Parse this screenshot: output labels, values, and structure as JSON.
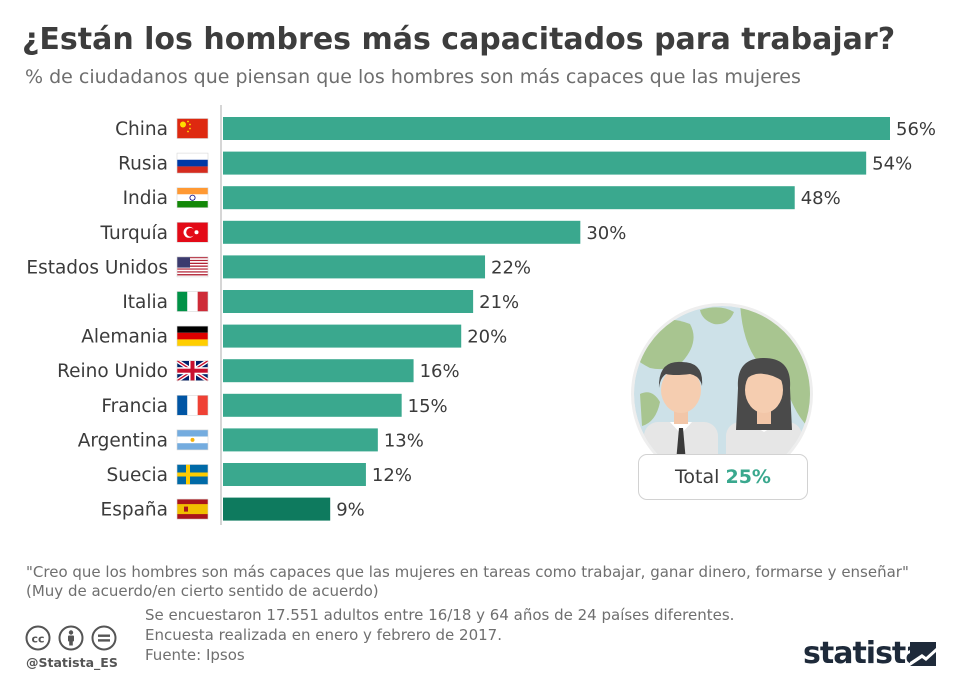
{
  "header": {
    "title": "¿Están los hombres más capacitados para trabajar?",
    "subtitle": "% de ciudadanos que piensan que los hombres son más capaces que las mujeres"
  },
  "colors": {
    "bar": "#3aa88e",
    "bar_highlight": "#0e7a5e",
    "text": "#3b3b3b",
    "brand": "#1e2a3a"
  },
  "chart_data": {
    "type": "bar",
    "orientation": "horizontal",
    "categories": [
      "China",
      "Rusia",
      "India",
      "Turquía",
      "Estados Unidos",
      "Italia",
      "Alemania",
      "Reino Unido",
      "Francia",
      "Argentina",
      "Suecia",
      "España"
    ],
    "values": [
      56,
      54,
      48,
      30,
      22,
      21,
      20,
      16,
      15,
      13,
      12,
      9
    ],
    "value_labels": [
      "56%",
      "54%",
      "48%",
      "30%",
      "22%",
      "21%",
      "20%",
      "16%",
      "15%",
      "13%",
      "12%",
      "9%"
    ],
    "flags": [
      "china-flag-icon",
      "russia-flag-icon",
      "india-flag-icon",
      "turkey-flag-icon",
      "usa-flag-icon",
      "italy-flag-icon",
      "germany-flag-icon",
      "uk-flag-icon",
      "france-flag-icon",
      "argentina-flag-icon",
      "sweden-flag-icon",
      "spain-flag-icon"
    ],
    "highlight": "España",
    "unit": "%",
    "xlim": [
      0,
      56
    ],
    "grid": false
  },
  "total": {
    "label": "Total",
    "value": "25%"
  },
  "footer": {
    "quote_line1": "\"Creo que los hombres son más capaces que las mujeres en tareas como trabajar, ganar dinero, formarse y enseñar\"",
    "quote_line2": "(Muy de acuerdo/en cierto sentido de acuerdo)",
    "note_line1": "Se encuestaron 17.551 adultos entre 16/18 y 64 años de 24 países diferentes.",
    "note_line2": "Encuesta realizada en enero y febrero de 2017.",
    "source": "Fuente: Ipsos",
    "handle": "@Statista_ES",
    "brand": "statista",
    "license_icons": [
      "cc-icon",
      "attribution-icon",
      "no-derivatives-icon"
    ]
  }
}
